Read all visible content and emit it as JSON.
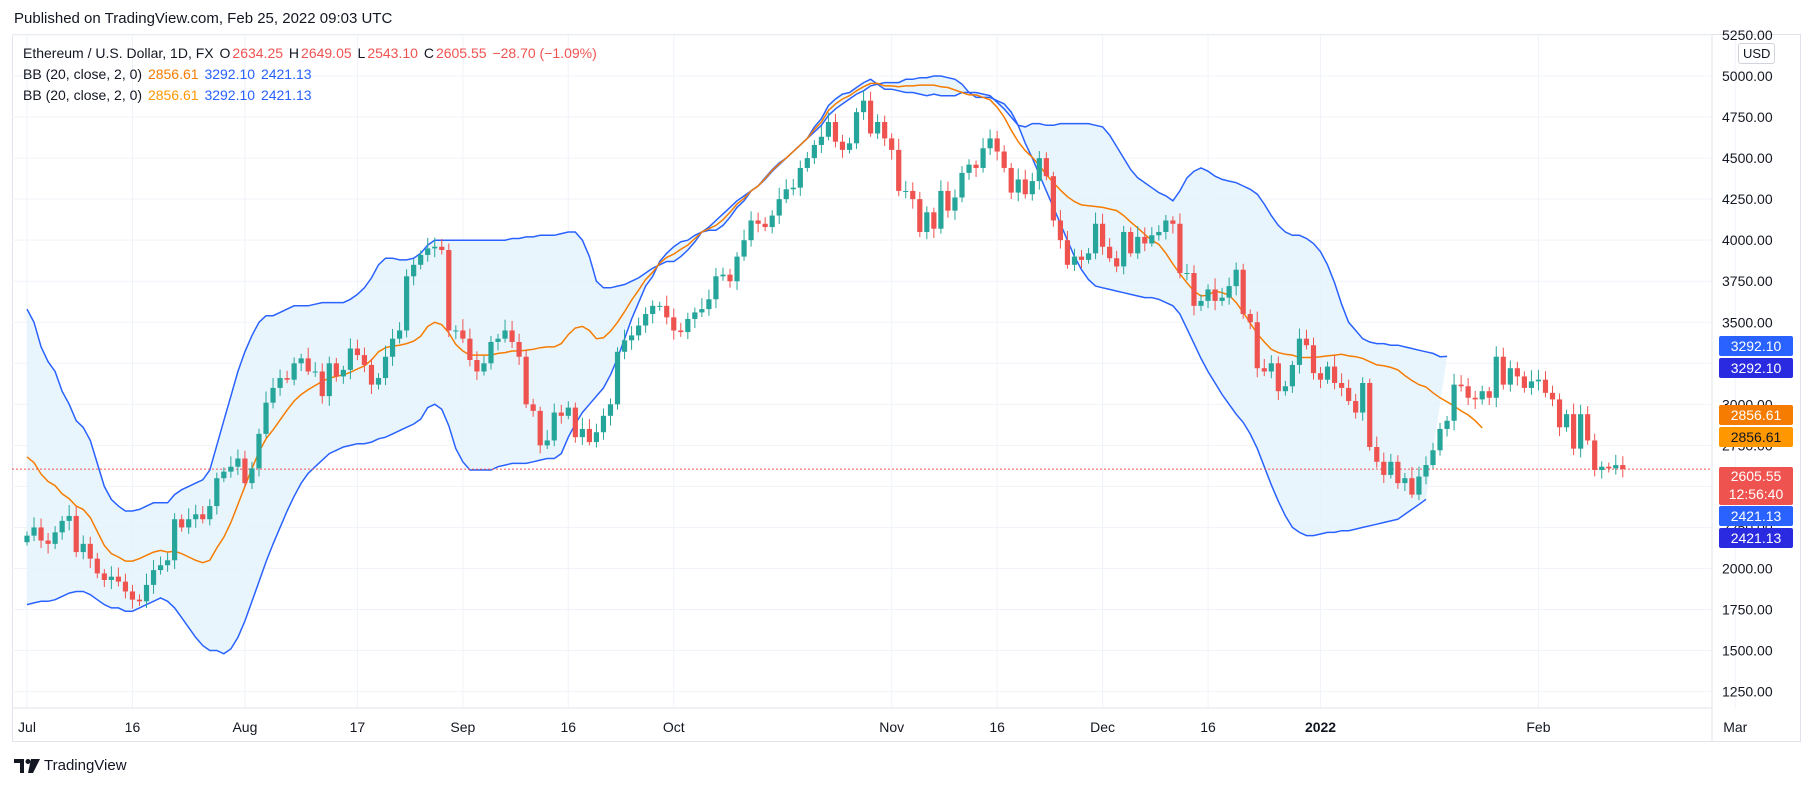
{
  "header": {
    "published": "Published on TradingView.com, Feb 25, 2022 09:03 UTC"
  },
  "legend": {
    "symbol": "Ethereum / U.S. Dollar, 1D, FX",
    "open_label": "O",
    "open": "2634.25",
    "high_label": "H",
    "high": "2649.05",
    "low_label": "L",
    "low": "2543.10",
    "close_label": "C",
    "close": "2605.55",
    "change": "−28.70 (−1.09%)",
    "bb1": {
      "label": "BB (20, close, 2, 0)",
      "basis": "2856.61",
      "upper": "3292.10",
      "lower": "2421.13"
    },
    "bb2": {
      "label": "BB (20, close, 2, 0)",
      "basis": "2856.61",
      "upper": "3292.10",
      "lower": "2421.13"
    }
  },
  "currency": "USD",
  "price_tags": {
    "upper1": "3292.10",
    "upper2": "3292.10",
    "basis1": "2856.61",
    "basis2": "2856.61",
    "last_price": "2605.55",
    "countdown": "12:56:40",
    "lower1": "2421.13",
    "lower2": "2421.13"
  },
  "brand": "TradingView",
  "colors": {
    "up": "#26a69a",
    "down": "#ef5350",
    "band": "#2962ff",
    "basis": "#f57c00",
    "fill": "#e3f2fd"
  },
  "chart_data": {
    "type": "candlestick",
    "ylim": [
      1150,
      5250
    ],
    "y_ticks": [
      "1250.00",
      "1500.00",
      "1750.00",
      "2000.00",
      "2250.00",
      "2500.00",
      "2750.00",
      "3000.00",
      "3250.00",
      "3500.00",
      "3750.00",
      "4000.00",
      "4250.00",
      "4500.00",
      "4750.00",
      "5000.00",
      "5250.00"
    ],
    "x_labels": [
      "Jul",
      "16",
      "Aug",
      "17",
      "Sep",
      "16",
      "Oct",
      "Nov",
      "16",
      "Dec",
      "16",
      "2022",
      "Feb",
      "Mar"
    ],
    "x_label_days": [
      0,
      15,
      31,
      47,
      62,
      77,
      92,
      123,
      138,
      153,
      168,
      184,
      215,
      243
    ],
    "first_day": 0,
    "last_price": 2605.55,
    "close": [
      2200,
      2250,
      2170,
      2150,
      2220,
      2290,
      2320,
      2100,
      2150,
      2060,
      1970,
      1930,
      1950,
      1920,
      1860,
      1810,
      1800,
      1900,
      1990,
      2020,
      2050,
      2300,
      2250,
      2300,
      2330,
      2300,
      2380,
      2550,
      2590,
      2620,
      2670,
      2520,
      2610,
      2820,
      3010,
      3100,
      3160,
      3150,
      3250,
      3280,
      3200,
      3200,
      3050,
      3250,
      3170,
      3210,
      3340,
      3300,
      3240,
      3120,
      3160,
      3290,
      3400,
      3450,
      3780,
      3850,
      3910,
      3950,
      3960,
      3940,
      3450,
      3450,
      3400,
      3270,
      3200,
      3250,
      3380,
      3400,
      3450,
      3380,
      3290,
      3000,
      2960,
      2750,
      2780,
      2950,
      2930,
      2980,
      2800,
      2850,
      2770,
      2830,
      2930,
      3000,
      3320,
      3390,
      3420,
      3480,
      3550,
      3600,
      3600,
      3530,
      3450,
      3440,
      3520,
      3560,
      3580,
      3640,
      3780,
      3790,
      3750,
      3900,
      4000,
      4120,
      4100,
      4080,
      4150,
      4250,
      4310,
      4320,
      4440,
      4500,
      4580,
      4630,
      4720,
      4600,
      4550,
      4590,
      4780,
      4850,
      4650,
      4720,
      4620,
      4550,
      4300,
      4300,
      4250,
      4050,
      4170,
      4070,
      4300,
      4180,
      4260,
      4410,
      4460,
      4440,
      4560,
      4620,
      4540,
      4440,
      4290,
      4370,
      4280,
      4360,
      4500,
      4390,
      4120,
      4000,
      3850,
      3900,
      3880,
      3920,
      4100,
      3960,
      3890,
      3840,
      4050,
      3920,
      4020,
      3980,
      4030,
      4050,
      4120,
      4100,
      3800,
      3800,
      3600,
      3630,
      3700,
      3630,
      3650,
      3720,
      3820,
      3550,
      3500,
      3220,
      3200,
      3250,
      3080,
      3110,
      3240,
      3400,
      3360,
      3190,
      3150,
      3230,
      3130,
      3100,
      3020,
      2950,
      3130,
      2740,
      2650,
      2570,
      2650,
      2520,
      2550,
      2450,
      2560,
      2630,
      2720,
      2850,
      2900,
      3120,
      3110,
      3040,
      3030,
      3080,
      3040,
      3290,
      3120,
      3220,
      3170,
      3100,
      3140,
      3150,
      3070,
      3030,
      2860,
      2940,
      2730,
      2940,
      2780,
      2600,
      2620,
      2610,
      2630,
      2606
    ],
    "bb_upper": [
      3580,
      3500,
      3350,
      3260,
      3200,
      3080,
      3000,
      2900,
      2860,
      2780,
      2640,
      2500,
      2420,
      2380,
      2350,
      2350,
      2360,
      2380,
      2400,
      2400,
      2400,
      2450,
      2480,
      2500,
      2520,
      2540,
      2600,
      2750,
      2900,
      3050,
      3200,
      3320,
      3420,
      3500,
      3540,
      3540,
      3560,
      3580,
      3600,
      3600,
      3600,
      3610,
      3620,
      3620,
      3620,
      3620,
      3640,
      3670,
      3710,
      3770,
      3850,
      3890,
      3890,
      3880,
      3880,
      3890,
      3920,
      3970,
      4000,
      4000,
      4000,
      4000,
      4000,
      4000,
      4000,
      4000,
      4000,
      4000,
      4000,
      4010,
      4010,
      4020,
      4020,
      4030,
      4030,
      4030,
      4040,
      4050,
      4050,
      4000,
      3900,
      3750,
      3710,
      3710,
      3720,
      3730,
      3750,
      3770,
      3800,
      3830,
      3850,
      3870,
      3870,
      3900,
      3940,
      3990,
      4050,
      4080,
      4120,
      4160,
      4200,
      4240,
      4270,
      4300,
      4330,
      4370,
      4420,
      4460,
      4500,
      4540,
      4580,
      4620,
      4690,
      4740,
      4820,
      4860,
      4890,
      4900,
      4930,
      4960,
      4980,
      4950,
      4920,
      4920,
      4910,
      4900,
      4900,
      4890,
      4880,
      4890,
      4880,
      4880,
      4880,
      4900,
      4900,
      4900,
      4890,
      4880,
      4840,
      4800,
      4750,
      4700,
      4690,
      4710,
      4710,
      4700,
      4700,
      4710,
      4710,
      4710,
      4710,
      4710,
      4700,
      4690,
      4640,
      4570,
      4500,
      4430,
      4380,
      4350,
      4320,
      4290,
      4270,
      4240,
      4300,
      4380,
      4420,
      4440,
      4420,
      4390,
      4370,
      4360,
      4350,
      4330,
      4310,
      4280,
      4220,
      4150,
      4090,
      4050,
      4030,
      4030,
      4010,
      3980,
      3930,
      3850,
      3740,
      3610,
      3500,
      3450,
      3400,
      3380,
      3370,
      3370,
      3360,
      3360,
      3350,
      3340,
      3330,
      3320,
      3310,
      3290,
      3292.1
    ],
    "bb_lower": [
      1780,
      1790,
      1800,
      1800,
      1810,
      1830,
      1850,
      1860,
      1860,
      1840,
      1810,
      1780,
      1760,
      1760,
      1740,
      1740,
      1760,
      1780,
      1800,
      1820,
      1800,
      1760,
      1700,
      1640,
      1580,
      1530,
      1500,
      1500,
      1480,
      1510,
      1580,
      1680,
      1800,
      1920,
      2040,
      2150,
      2250,
      2350,
      2440,
      2520,
      2580,
      2620,
      2660,
      2700,
      2720,
      2740,
      2750,
      2760,
      2760,
      2770,
      2790,
      2800,
      2820,
      2840,
      2860,
      2880,
      2910,
      2980,
      3000,
      2970,
      2870,
      2730,
      2650,
      2600,
      2600,
      2600,
      2600,
      2620,
      2630,
      2640,
      2640,
      2640,
      2650,
      2660,
      2670,
      2670,
      2700,
      2800,
      2880,
      2950,
      3000,
      3050,
      3100,
      3180,
      3280,
      3400,
      3520,
      3620,
      3720,
      3780,
      3870,
      3920,
      3960,
      3990,
      4000,
      4030,
      4050,
      4060,
      4060,
      4090,
      4140,
      4200,
      4240,
      4300,
      4330,
      4380,
      4430,
      4470,
      4500,
      4540,
      4580,
      4620,
      4660,
      4700,
      4760,
      4800,
      4830,
      4860,
      4890,
      4910,
      4940,
      4950,
      4960,
      4960,
      4960,
      4980,
      4980,
      4990,
      4990,
      5000,
      5000,
      4990,
      4980,
      4950,
      4900,
      4870,
      4870,
      4870,
      4850,
      4830,
      4780,
      4700,
      4590,
      4500,
      4400,
      4300,
      4200,
      4100,
      4000,
      3900,
      3820,
      3760,
      3720,
      3710,
      3700,
      3690,
      3680,
      3670,
      3660,
      3650,
      3650,
      3640,
      3620,
      3600,
      3550,
      3460,
      3370,
      3280,
      3200,
      3130,
      3060,
      3000,
      2940,
      2890,
      2820,
      2730,
      2620,
      2510,
      2410,
      2320,
      2250,
      2220,
      2200,
      2200,
      2210,
      2220,
      2220,
      2230,
      2230,
      2240,
      2250,
      2260,
      2270,
      2280,
      2290,
      2300,
      2330,
      2360,
      2390,
      2421.13
    ],
    "bb_basis": [
      2680,
      2645,
      2575,
      2530,
      2505,
      2455,
      2425,
      2380,
      2360,
      2310,
      2225,
      2140,
      2090,
      2070,
      2045,
      2045,
      2060,
      2080,
      2100,
      2110,
      2100,
      2105,
      2090,
      2070,
      2050,
      2035,
      2050,
      2125,
      2190,
      2280,
      2390,
      2500,
      2610,
      2710,
      2790,
      2845,
      2905,
      2965,
      3020,
      3060,
      3090,
      3115,
      3140,
      3160,
      3170,
      3180,
      3195,
      3215,
      3235,
      3270,
      3320,
      3345,
      3355,
      3360,
      3370,
      3385,
      3415,
      3475,
      3500,
      3485,
      3435,
      3365,
      3325,
      3300,
      3300,
      3300,
      3300,
      3310,
      3315,
      3325,
      3325,
      3330,
      3335,
      3345,
      3350,
      3350,
      3370,
      3425,
      3465,
      3475,
      3450,
      3400,
      3405,
      3445,
      3500,
      3565,
      3635,
      3695,
      3760,
      3805,
      3860,
      3895,
      3915,
      3945,
      3970,
      4010,
      4050,
      4070,
      4090,
      4125,
      4170,
      4220,
      4255,
      4300,
      4330,
      4375,
      4425,
      4465,
      4500,
      4540,
      4580,
      4620,
      4675,
      4720,
      4790,
      4830,
      4860,
      4880,
      4910,
      4935,
      4955,
      4955,
      4940,
      4940,
      4935,
      4940,
      4940,
      4945,
      4945,
      4945,
      4935,
      4930,
      4915,
      4900,
      4885,
      4885,
      4870,
      4855,
      4810,
      4750,
      4670,
      4600,
      4545,
      4505,
      4455,
      4400,
      4350,
      4305,
      4265,
      4235,
      4215,
      4210,
      4205,
      4200,
      4190,
      4180,
      4150,
      4110,
      4075,
      4035,
      4000,
      3975,
      3920,
      3855,
      3795,
      3740,
      3690,
      3660,
      3665,
      3690,
      3680,
      3665,
      3620,
      3560,
      3495,
      3430,
      3380,
      3335,
      3315,
      3305,
      3300,
      3285,
      3285,
      3285,
      3290,
      3295,
      3300,
      3305,
      3295,
      3290,
      3280,
      3260,
      3240,
      3235,
      3225,
      3210,
      3175,
      3145,
      3120,
      3105,
      3070,
      3040,
      3015,
      2990,
      2960,
      2935,
      2900,
      2856.61
    ]
  }
}
